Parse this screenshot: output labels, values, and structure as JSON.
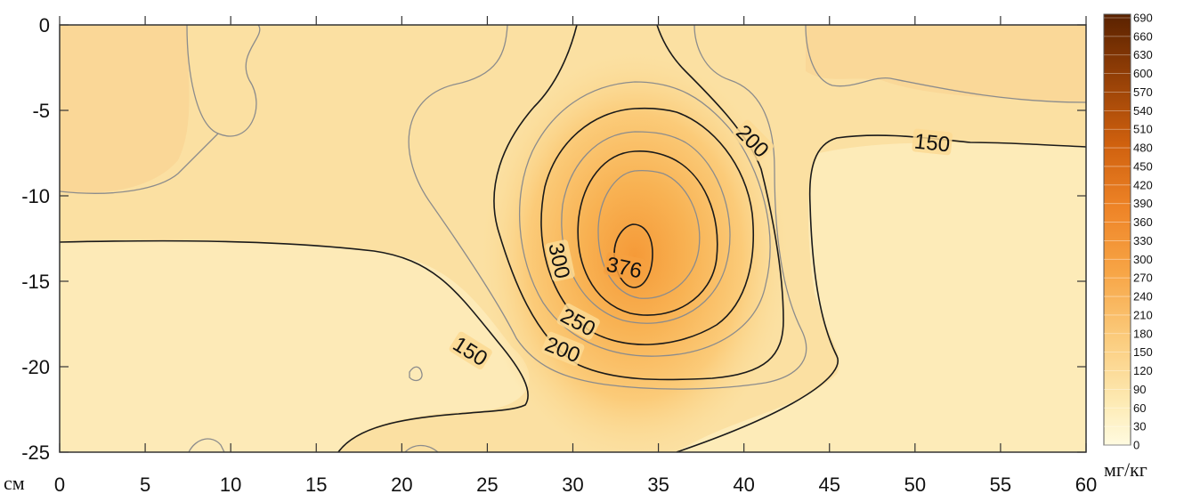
{
  "chart_data": {
    "type": "heatmap",
    "subtype": "contour",
    "x_unit_label": "см",
    "colorbar_unit_label": "мг/кг",
    "xlim": [
      0,
      60
    ],
    "ylim": [
      -25,
      0
    ],
    "x_ticks": [
      "0",
      "5",
      "10",
      "15",
      "20",
      "25",
      "30",
      "35",
      "40",
      "45",
      "50",
      "55",
      "60"
    ],
    "y_ticks": [
      "0",
      "-5",
      "-10",
      "-15",
      "-20",
      "-25"
    ],
    "x_tick_values": [
      0,
      5,
      10,
      15,
      20,
      25,
      30,
      35,
      40,
      45,
      50,
      55,
      60
    ],
    "y_tick_values": [
      0,
      -5,
      -10,
      -15,
      -20,
      -25
    ],
    "colorbar_levels": [
      "690",
      "660",
      "630",
      "600",
      "570",
      "540",
      "510",
      "480",
      "450",
      "420",
      "390",
      "360",
      "330",
      "300",
      "270",
      "240",
      "210",
      "180",
      "150",
      "120",
      "90",
      "60",
      "30",
      "0"
    ],
    "contour_labels": [
      {
        "text": "200",
        "x": 40.5,
        "y": -6.8,
        "angle": 45
      },
      {
        "text": "150",
        "x": 51.0,
        "y": -6.9,
        "angle": 6
      },
      {
        "text": "300",
        "x": 29.2,
        "y": -13.8,
        "angle": 78
      },
      {
        "text": "376",
        "x": 33.0,
        "y": -14.2,
        "angle": 12
      },
      {
        "text": "250",
        "x": 30.3,
        "y": -17.4,
        "angle": 28
      },
      {
        "text": "200",
        "x": 29.4,
        "y": -19.0,
        "angle": 22
      },
      {
        "text": "150",
        "x": 24.0,
        "y": -19.1,
        "angle": 32
      }
    ],
    "peak": {
      "value": 376,
      "x": 33.2,
      "y": -14.0
    },
    "grid": false,
    "legend": "right"
  },
  "colors": {
    "background_low": "#fcebb8",
    "peak": "#f59a38",
    "contour_major": "#1a1a1a",
    "contour_minor": "#8c8c8c"
  }
}
